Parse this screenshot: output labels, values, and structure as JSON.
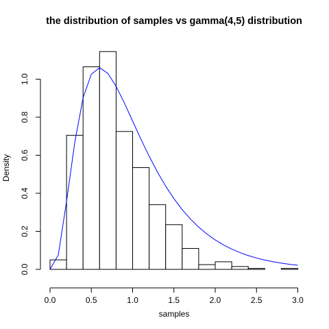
{
  "chart_data": {
    "type": "bar",
    "title": "the distribution of samples vs gamma(4,5) distribution",
    "xlabel": "samples",
    "ylabel": "Density",
    "xlim": [
      0,
      3.1
    ],
    "ylim": [
      0,
      1.2
    ],
    "xticks": [
      "0.0",
      "0.5",
      "1.0",
      "1.5",
      "2.0",
      "2.5",
      "3.0"
    ],
    "yticks": [
      "0.0",
      "0.2",
      "0.4",
      "0.6",
      "0.8",
      "1.0"
    ],
    "grid": false,
    "histogram": {
      "bin_width": 0.2,
      "bins": [
        {
          "x0": 0.0,
          "x1": 0.2,
          "density": 0.05
        },
        {
          "x0": 0.2,
          "x1": 0.4,
          "density": 0.705
        },
        {
          "x0": 0.4,
          "x1": 0.6,
          "density": 1.065
        },
        {
          "x0": 0.6,
          "x1": 0.8,
          "density": 1.145
        },
        {
          "x0": 0.8,
          "x1": 1.0,
          "density": 0.725
        },
        {
          "x0": 1.0,
          "x1": 1.2,
          "density": 0.535
        },
        {
          "x0": 1.2,
          "x1": 1.4,
          "density": 0.34
        },
        {
          "x0": 1.4,
          "x1": 1.6,
          "density": 0.235
        },
        {
          "x0": 1.6,
          "x1": 1.8,
          "density": 0.11
        },
        {
          "x0": 1.8,
          "x1": 2.0,
          "density": 0.025
        },
        {
          "x0": 2.0,
          "x1": 2.2,
          "density": 0.04
        },
        {
          "x0": 2.2,
          "x1": 2.4,
          "density": 0.015
        },
        {
          "x0": 2.4,
          "x1": 2.6,
          "density": 0.005
        },
        {
          "x0": 2.6,
          "x1": 2.8,
          "density": 0.0
        },
        {
          "x0": 2.8,
          "x1": 3.0,
          "density": 0.005
        }
      ]
    },
    "density_line": {
      "color": "#0000ff",
      "x": [
        0.0,
        0.1,
        0.2,
        0.3,
        0.4,
        0.5,
        0.6,
        0.7,
        0.8,
        0.9,
        1.0,
        1.1,
        1.2,
        1.3,
        1.4,
        1.5,
        1.6,
        1.7,
        1.8,
        1.9,
        2.0,
        2.1,
        2.2,
        2.3,
        2.4,
        2.5,
        2.6,
        2.7,
        2.8,
        2.9,
        3.0
      ],
      "y": [
        0.0,
        0.0758,
        0.3576,
        0.6694,
        0.9022,
        1.0261,
        1.0602,
        1.0303,
        0.9623,
        0.8746,
        0.7797,
        0.6849,
        0.5949,
        0.5121,
        0.4376,
        0.3718,
        0.3143,
        0.2646,
        0.222,
        0.1855,
        0.1547,
        0.1285,
        0.1065,
        0.088,
        0.0726,
        0.0597,
        0.049,
        0.0401,
        0.0328,
        0.0267,
        0.0218
      ]
    }
  }
}
